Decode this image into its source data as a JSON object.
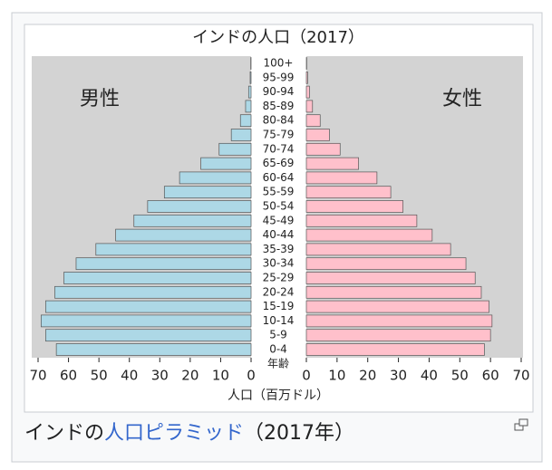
{
  "chart_data": {
    "type": "pyramid",
    "title": "インドの人口（2017）",
    "categories": [
      "0-4",
      "5-9",
      "10-14",
      "15-19",
      "20-24",
      "25-29",
      "30-34",
      "35-39",
      "40-44",
      "45-49",
      "50-54",
      "55-59",
      "60-64",
      "65-69",
      "70-74",
      "75-79",
      "80-84",
      "85-89",
      "90-94",
      "95-99",
      "100+"
    ],
    "series": [
      {
        "name": "男性",
        "color": "#add8e6",
        "values": [
          64,
          67.5,
          69,
          67.5,
          64.5,
          61.5,
          57.5,
          51,
          44.5,
          38.5,
          34,
          28.5,
          23.5,
          16.5,
          10.5,
          6.5,
          3.5,
          1.8,
          0.8,
          0.3,
          0.1
        ]
      },
      {
        "name": "女性",
        "color": "#ffc0cb",
        "values": [
          58,
          60,
          60.5,
          59.5,
          57,
          55,
          52,
          47,
          41,
          36,
          31.5,
          27.5,
          23,
          17,
          11,
          7.5,
          4.5,
          2,
          1,
          0.4,
          0.1
        ]
      }
    ],
    "xlim": [
      0,
      70
    ],
    "xticks": [
      0,
      10,
      20,
      30,
      40,
      50,
      60,
      70
    ],
    "x_label": "人口（百万ドル）",
    "y_label": "年齢"
  },
  "caption": {
    "prefix": "インドの",
    "link": "人口ピラミッド",
    "suffix": "（2017年）"
  }
}
